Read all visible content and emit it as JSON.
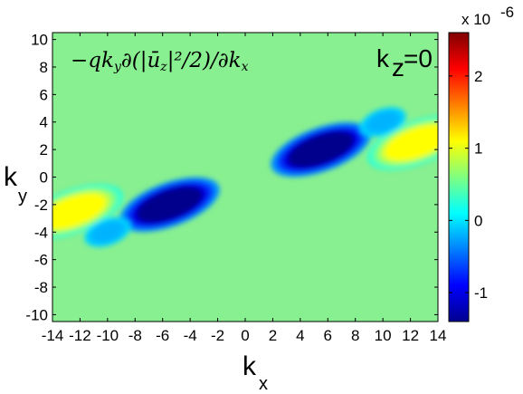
{
  "chart_data": {
    "type": "heatmap",
    "title_formula": "−qk_y∂(|ū_z|²/2)/∂k_x",
    "annotation": "k_z=0",
    "xlabel": "k",
    "xlabel_sub": "x",
    "ylabel": "k",
    "ylabel_sub": "y",
    "xlim": [
      -14,
      14
    ],
    "ylim": [
      -10.5,
      10.5
    ],
    "xticks": [
      "-14",
      "-12",
      "-10",
      "-8",
      "-6",
      "-4",
      "-2",
      "0",
      "2",
      "4",
      "6",
      "8",
      "10",
      "12",
      "14"
    ],
    "yticks": [
      "10",
      "8",
      "6",
      "4",
      "2",
      "0",
      "-2",
      "-4",
      "-6",
      "-8",
      "-10"
    ],
    "colorbar": {
      "range": [
        -1.4e-06,
        2.6e-06
      ],
      "multiplier": "x 10",
      "exponent": "-6",
      "ticks": [
        "2",
        "1",
        "0",
        "-1"
      ],
      "colormap": "jet"
    },
    "features": [
      {
        "kx": 5.5,
        "ky": 2.0,
        "value": -1.35e-06,
        "label": "negative lobe upper-right"
      },
      {
        "kx": -5.5,
        "ky": -2.0,
        "value": -1.35e-06,
        "label": "negative lobe lower-left"
      },
      {
        "kx": 12.5,
        "ky": 2.5,
        "value": 1.1e-06,
        "label": "positive lobe right edge"
      },
      {
        "kx": -12.5,
        "ky": -2.5,
        "value": 1.1e-06,
        "label": "positive lobe left edge"
      },
      {
        "kx": 10.0,
        "ky": 4.0,
        "value": -2e-07,
        "label": "weak negative right"
      },
      {
        "kx": -10.0,
        "ky": -4.0,
        "value": -2e-07,
        "label": "weak negative left"
      }
    ]
  },
  "colors": {
    "background_value_color": "#88f090",
    "frame": "#000000"
  }
}
